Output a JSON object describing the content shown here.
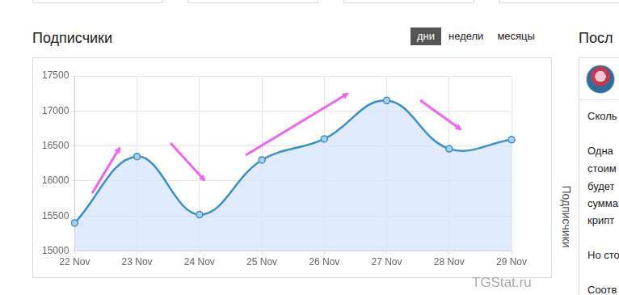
{
  "chart_data": {
    "type": "line",
    "title": "Подписчики",
    "y_label": "Подписчики",
    "annotations": [
      "TGStat.ru"
    ],
    "categories": [
      "22 Nov",
      "23 Nov",
      "24 Nov",
      "25 Nov",
      "26 Nov",
      "27 Nov",
      "28 Nov",
      "29 Nov"
    ],
    "values": [
      15400,
      16350,
      15520,
      16300,
      16600,
      17150,
      16460,
      16590
    ],
    "color": "#3a8fc8",
    "marker": "circle",
    "ylim": [
      15000,
      17500
    ],
    "yticks": [
      15000,
      15500,
      16000,
      16500,
      17000,
      17500
    ],
    "grid": true
  },
  "page": {
    "tabs": [
      "дни",
      "недели",
      "месяцы"
    ],
    "active_tab": "дни",
    "sidebar": {
      "title": "Посл",
      "lines": [
        "Сколь",
        "Одна",
        "стоим",
        "будет",
        "сумма",
        "крипт",
        "Но сто",
        "Соотв"
      ]
    }
  }
}
